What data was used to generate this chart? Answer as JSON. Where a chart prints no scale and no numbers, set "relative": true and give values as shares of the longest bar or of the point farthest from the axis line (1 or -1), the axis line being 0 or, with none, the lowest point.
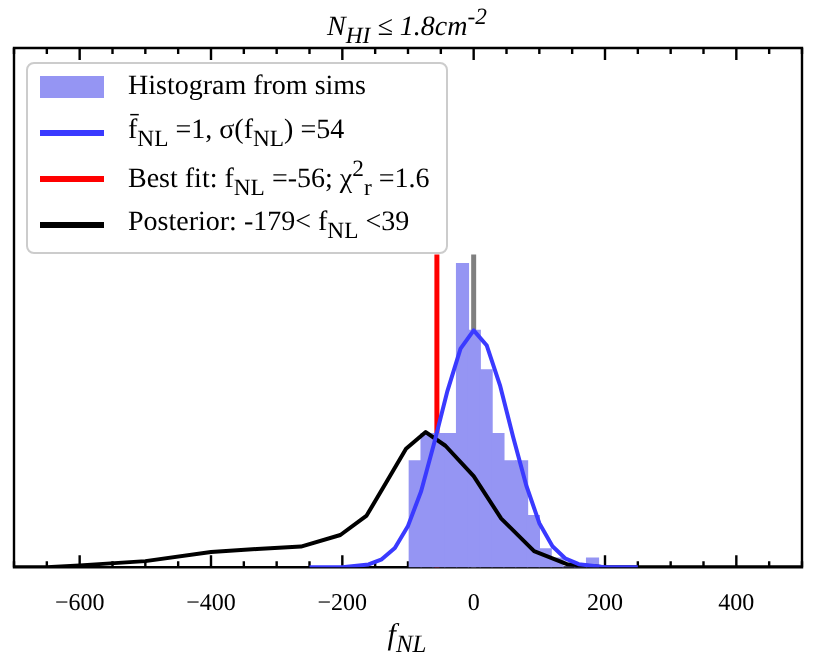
{
  "chart_data": {
    "type": "histogram",
    "title": "N$_{HI}$ ≤ 1.8cm$^{-2}$",
    "xlabel": "f$_{NL}$",
    "relative": true,
    "legend": "top left",
    "tick_labels": "x",
    "xlim": [
      -700,
      500
    ],
    "xticks": [
      {
        "value": -700,
        "label": null
      },
      {
        "value": -650,
        "label": null
      },
      -600,
      {
        "value": -550,
        "label": null
      },
      {
        "value": -500,
        "label": null
      },
      {
        "value": -450,
        "label": null
      },
      -400,
      {
        "value": -350,
        "label": null
      },
      {
        "value": -300,
        "label": null
      },
      {
        "value": -250,
        "label": null
      },
      -200,
      {
        "value": -150,
        "label": null
      },
      {
        "value": -100,
        "label": null
      },
      {
        "value": -50,
        "label": null
      },
      0,
      {
        "value": 50,
        "label": null
      },
      {
        "value": 100,
        "label": null
      },
      {
        "value": 150,
        "label": null
      },
      200,
      {
        "value": 250,
        "label": null
      },
      {
        "value": 300,
        "label": null
      },
      {
        "value": 350,
        "label": null
      },
      400,
      {
        "value": 450,
        "label": null
      },
      {
        "value": 500,
        "label": null
      }
    ],
    "series": [
      {
        "name": "Histogram from sims",
        "color": "#9595f3",
        "bins": [
          -98,
          -80,
          -62,
          -44,
          -26,
          -8,
          10,
          28,
          46,
          64,
          82,
          100,
          118,
          136,
          154,
          172,
          190
        ],
        "values": [
          0.35,
          0.44,
          0.44,
          0.44,
          1.0,
          0.78,
          0.65,
          0.44,
          0.35,
          0.35,
          0.17,
          0.06,
          0.03,
          0,
          0,
          0.03
        ]
      },
      {
        "type": "line",
        "name": "f̄$_{NL}$ =1, σ(f$_{NL}$) =54",
        "color": "#3a3aff",
        "x": [
          -250,
          -200,
          -160,
          -140,
          -120,
          -100,
          -80,
          -60,
          -40,
          -20,
          0,
          20,
          40,
          60,
          80,
          100,
          120,
          140,
          160,
          200,
          250
        ],
        "values": [
          0,
          0,
          0.009,
          0.026,
          0.063,
          0.136,
          0.25,
          0.41,
          0.58,
          0.72,
          0.78,
          0.73,
          0.6,
          0.43,
          0.27,
          0.145,
          0.069,
          0.028,
          0.01,
          0,
          0
        ]
      },
      {
        "type": "line",
        "name": "Posterior: -179< f$_{NL}$ <39",
        "color": "#000000",
        "x": [
          -700,
          -650,
          -600,
          -500,
          -400,
          -330,
          -263,
          -203,
          -163,
          -133,
          -103,
          -73,
          -43,
          0,
          42,
          92,
          142,
          200,
          500
        ],
        "values": [
          0,
          0,
          0.006,
          0.02,
          0.05,
          0.06,
          0.068,
          0.106,
          0.17,
          0.28,
          0.39,
          0.445,
          0.4,
          0.3,
          0.16,
          0.053,
          0.01,
          0,
          0
        ]
      }
    ],
    "ref_lines": [
      {
        "axis": "x",
        "value": -56,
        "label": "Best fit: f$_{NL}$ =-56; χ$^{2}$$_{r}$ =1.6",
        "color": "#ff0000"
      },
      {
        "axis": "x",
        "value": 0,
        "color": "#808080"
      }
    ]
  }
}
